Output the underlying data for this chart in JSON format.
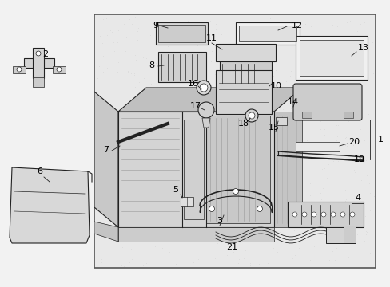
{
  "bg_color": "#f2f2f2",
  "panel_bg": "#e8e8e8",
  "panel_border": "#444444",
  "line_color": "#222222",
  "fill_light": "#d8d8d8",
  "fill_medium": "#c8c8c8",
  "fill_white": "#f8f8f8",
  "figsize": [
    4.89,
    3.6
  ],
  "dpi": 100
}
